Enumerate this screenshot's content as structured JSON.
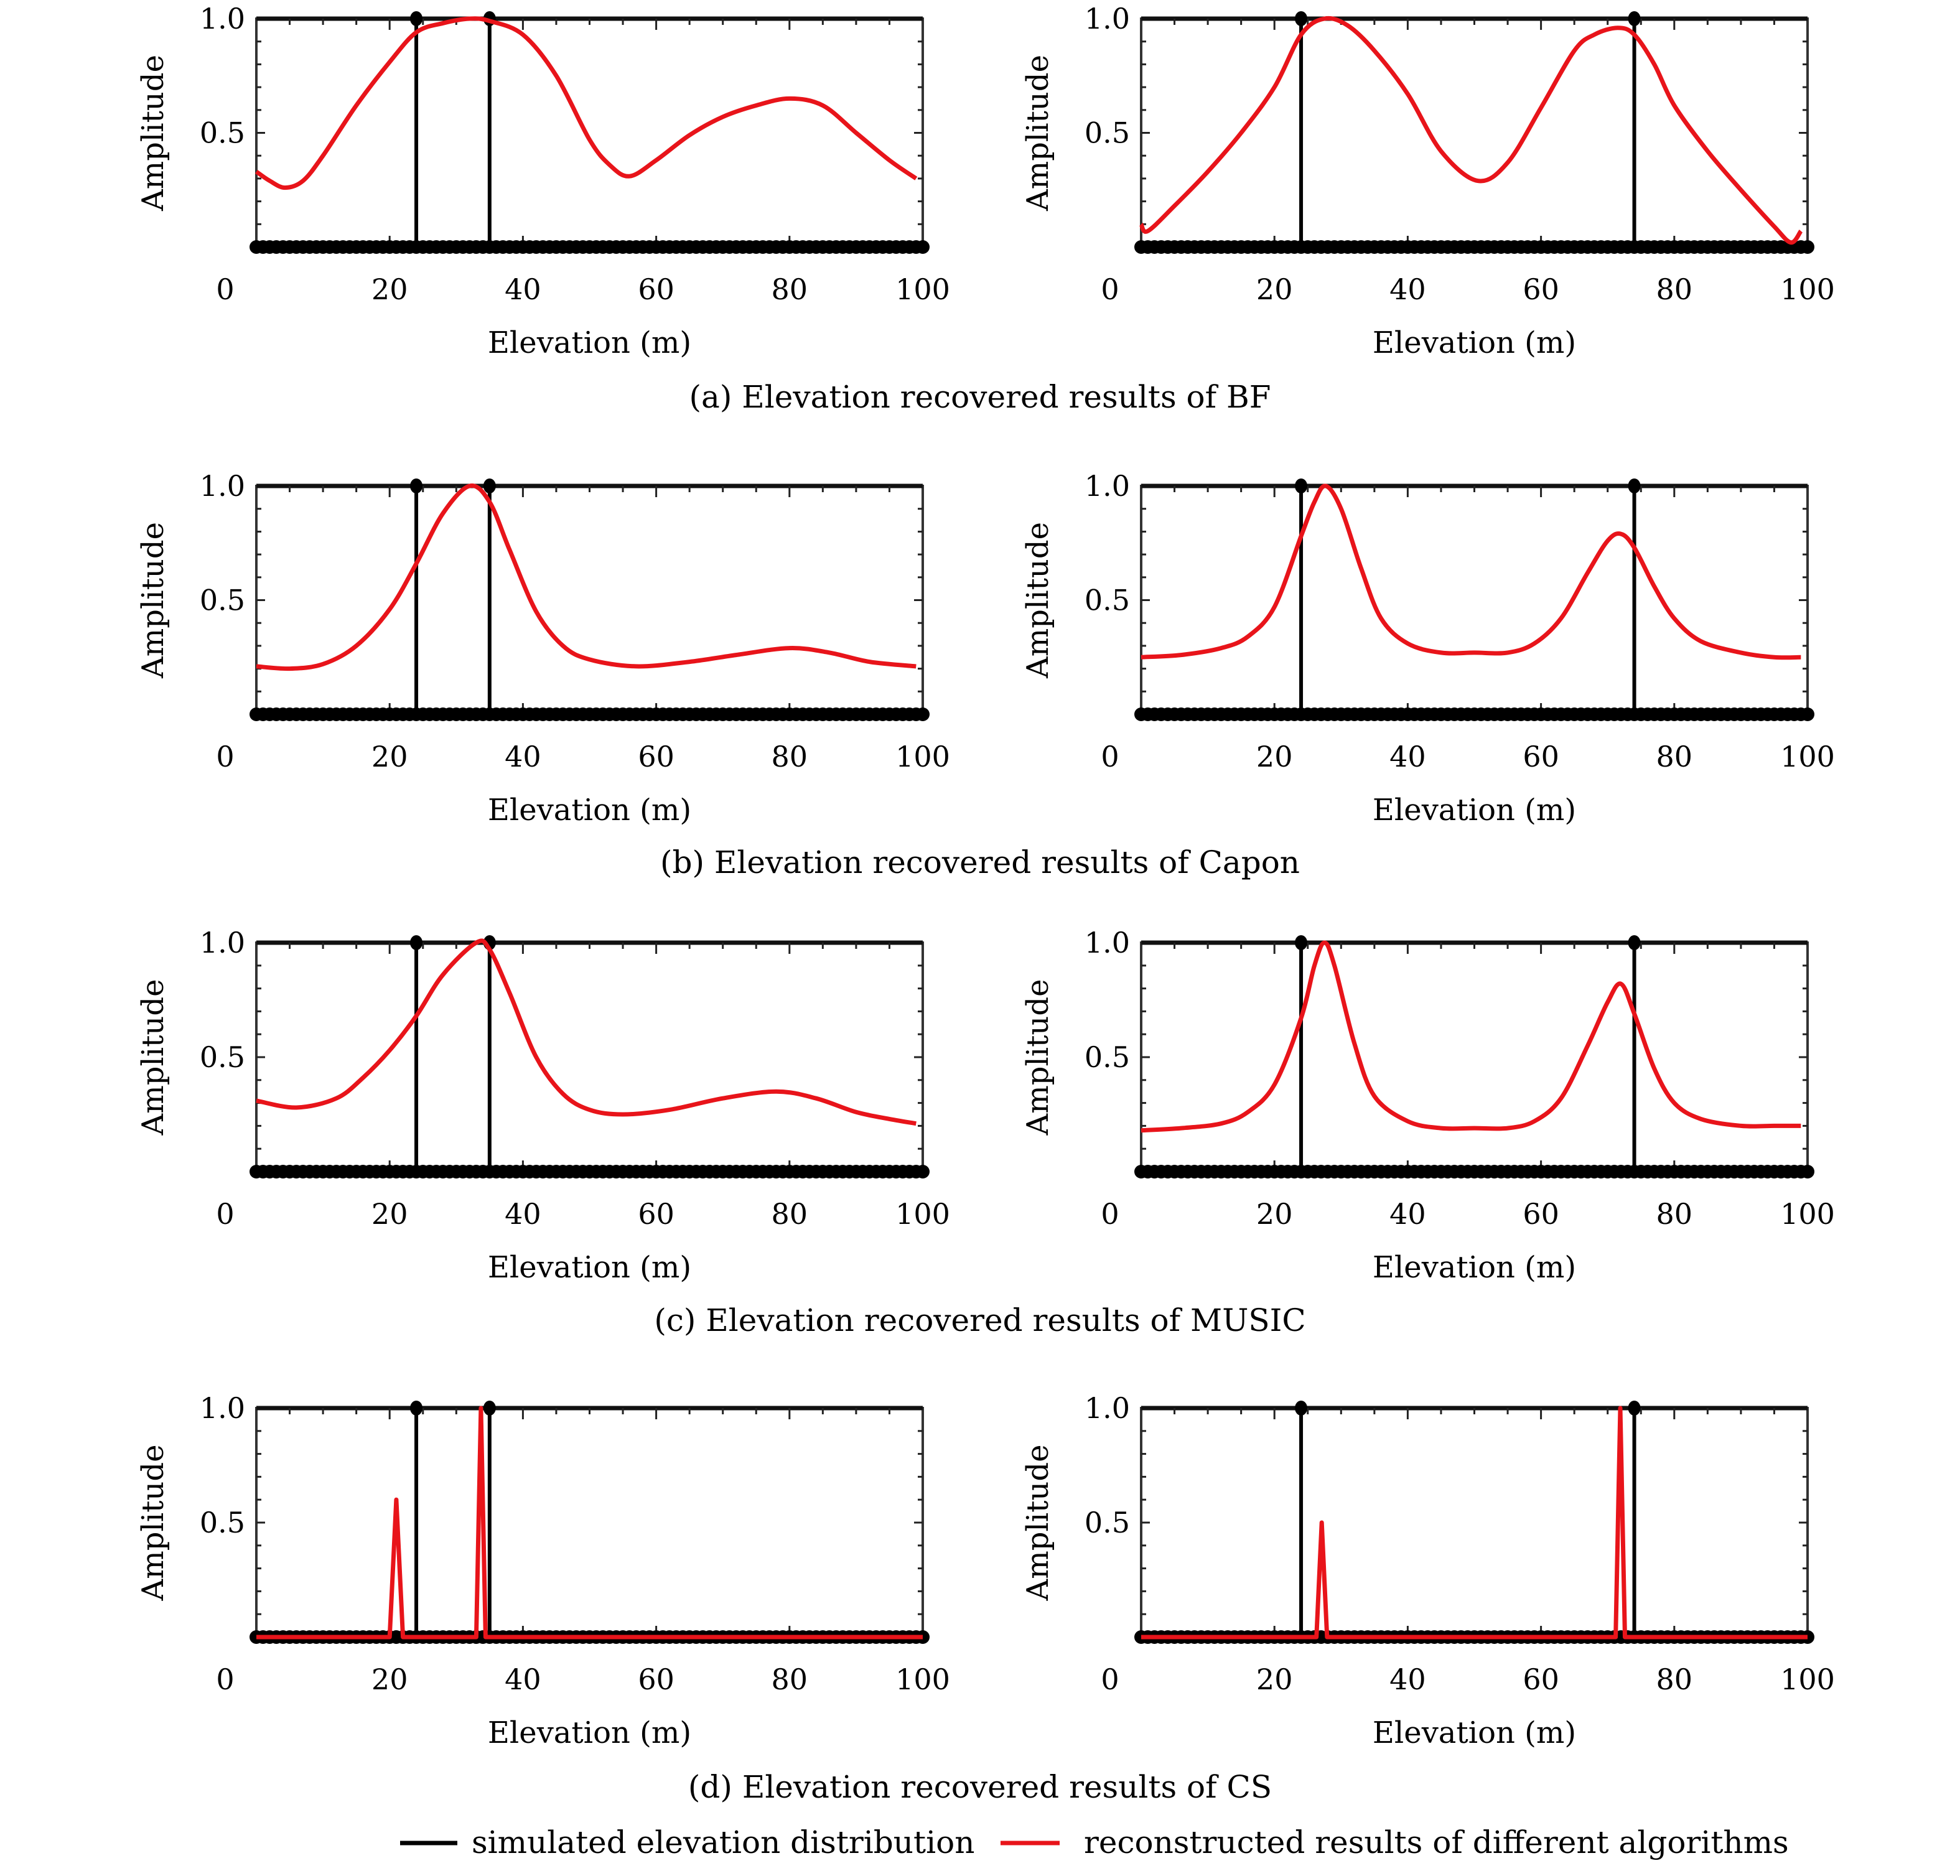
{
  "figure": {
    "legend": [
      {
        "label": "simulated elevation distribution",
        "color": "#000000"
      },
      {
        "label": "reconstructed results of different algorithms",
        "color": "#e8141a"
      }
    ]
  },
  "chart_data": [
    {
      "type": "line",
      "group": "a",
      "panel": "left",
      "caption": "(a) Elevation recovered results of BF",
      "xlabel": "Elevation (m)",
      "ylabel": "Amplitude",
      "xlim": [
        0,
        100
      ],
      "ylim": [
        0,
        1
      ],
      "xticks": [
        0,
        20,
        40,
        60,
        80,
        100
      ],
      "yticks": [
        0.5,
        1.0
      ],
      "ytick_labels": [
        "0.5",
        "1.0"
      ],
      "simulated": {
        "x": [
          24,
          35
        ],
        "y": [
          1,
          1
        ]
      },
      "reconstructed": {
        "x": [
          0,
          2,
          4.3,
          7,
          10,
          15,
          20,
          24,
          28,
          32,
          35,
          40,
          45,
          50,
          53,
          56,
          60,
          65,
          70,
          75,
          80,
          85,
          90,
          95,
          99
        ],
        "y": [
          0.33,
          0.29,
          0.26,
          0.29,
          0.4,
          0.62,
          0.81,
          0.94,
          0.98,
          1.0,
          0.99,
          0.93,
          0.75,
          0.47,
          0.36,
          0.31,
          0.38,
          0.49,
          0.57,
          0.62,
          0.65,
          0.62,
          0.5,
          0.38,
          0.3
        ]
      }
    },
    {
      "type": "line",
      "group": "a",
      "panel": "right",
      "caption": "(a) Elevation recovered results of BF",
      "xlabel": "Elevation (m)",
      "ylabel": "Amplitude",
      "xlim": [
        0,
        100
      ],
      "ylim": [
        0,
        1
      ],
      "xticks": [
        0,
        20,
        40,
        60,
        80,
        100
      ],
      "yticks": [
        0.5,
        1.0
      ],
      "ytick_labels": [
        "0.5",
        "1.0"
      ],
      "simulated": {
        "x": [
          24,
          74
        ],
        "y": [
          1,
          1
        ]
      },
      "reconstructed": {
        "x": [
          0,
          1,
          5,
          10,
          15,
          20,
          24,
          27.5,
          31,
          35,
          40,
          45,
          50.5,
          55,
          60,
          65,
          68,
          71.5,
          74,
          77,
          80,
          85,
          90,
          95,
          97.5,
          99
        ],
        "y": [
          0.1,
          0.07,
          0.18,
          0.33,
          0.5,
          0.7,
          0.93,
          1.0,
          0.97,
          0.86,
          0.67,
          0.42,
          0.29,
          0.37,
          0.61,
          0.86,
          0.93,
          0.96,
          0.93,
          0.8,
          0.62,
          0.42,
          0.25,
          0.09,
          0.02,
          0.07
        ]
      }
    },
    {
      "type": "line",
      "group": "b",
      "panel": "left",
      "caption": "(b) Elevation recovered results of Capon",
      "xlabel": "Elevation (m)",
      "ylabel": "Amplitude",
      "xlim": [
        0,
        100
      ],
      "ylim": [
        0,
        1
      ],
      "xticks": [
        0,
        20,
        40,
        60,
        80,
        100
      ],
      "yticks": [
        0.5,
        1.0
      ],
      "ytick_labels": [
        "0.5",
        "1.0"
      ],
      "simulated": {
        "x": [
          24,
          35
        ],
        "y": [
          1,
          1
        ]
      },
      "reconstructed": {
        "x": [
          0,
          5,
          10,
          15,
          20,
          24,
          28,
          32,
          35,
          38,
          42,
          46,
          50,
          57,
          65,
          72,
          80,
          86,
          92,
          99
        ],
        "y": [
          0.21,
          0.2,
          0.22,
          0.3,
          0.46,
          0.66,
          0.88,
          1.0,
          0.93,
          0.72,
          0.45,
          0.3,
          0.24,
          0.21,
          0.23,
          0.26,
          0.29,
          0.27,
          0.23,
          0.21
        ]
      }
    },
    {
      "type": "line",
      "group": "b",
      "panel": "right",
      "caption": "(b) Elevation recovered results of Capon",
      "xlabel": "Elevation (m)",
      "ylabel": "Amplitude",
      "xlim": [
        0,
        100
      ],
      "ylim": [
        0,
        1
      ],
      "xticks": [
        0,
        20,
        40,
        60,
        80,
        100
      ],
      "yticks": [
        0.5,
        1.0
      ],
      "ytick_labels": [
        "0.5",
        "1.0"
      ],
      "simulated": {
        "x": [
          24,
          74
        ],
        "y": [
          1,
          1
        ]
      },
      "reconstructed": {
        "x": [
          0,
          6,
          12,
          16,
          20,
          24,
          26,
          27.7,
          30,
          33,
          36,
          40,
          45,
          50,
          55,
          59,
          63,
          67,
          70,
          72,
          74,
          77,
          80,
          84,
          90,
          95,
          99
        ],
        "y": [
          0.25,
          0.26,
          0.29,
          0.34,
          0.47,
          0.78,
          0.93,
          1.0,
          0.9,
          0.64,
          0.42,
          0.31,
          0.27,
          0.27,
          0.27,
          0.31,
          0.42,
          0.62,
          0.76,
          0.79,
          0.73,
          0.56,
          0.42,
          0.32,
          0.27,
          0.25,
          0.25
        ]
      }
    },
    {
      "type": "line",
      "group": "c",
      "panel": "left",
      "caption": "(c) Elevation recovered results of MUSIC",
      "xlabel": "Elevation (m)",
      "ylabel": "Amplitude",
      "xlim": [
        0,
        100
      ],
      "ylim": [
        0,
        1
      ],
      "xticks": [
        0,
        20,
        40,
        60,
        80,
        100
      ],
      "yticks": [
        0.5,
        1.0
      ],
      "ytick_labels": [
        "0.5",
        "1.0"
      ],
      "simulated": {
        "x": [
          24,
          35
        ],
        "y": [
          1,
          1
        ]
      },
      "reconstructed": {
        "x": [
          0,
          6,
          12,
          16,
          20,
          24,
          28,
          33,
          35,
          38,
          42,
          46,
          50,
          55,
          62,
          70,
          78,
          84,
          90,
          95,
          99
        ],
        "y": [
          0.31,
          0.28,
          0.32,
          0.41,
          0.53,
          0.68,
          0.86,
          1.0,
          0.97,
          0.78,
          0.5,
          0.34,
          0.27,
          0.25,
          0.27,
          0.32,
          0.35,
          0.32,
          0.26,
          0.23,
          0.21
        ]
      }
    },
    {
      "type": "line",
      "group": "c",
      "panel": "right",
      "caption": "(c) Elevation recovered results of MUSIC",
      "xlabel": "Elevation (m)",
      "ylabel": "Amplitude",
      "xlim": [
        0,
        100
      ],
      "ylim": [
        0,
        1
      ],
      "xticks": [
        0,
        20,
        40,
        60,
        80,
        100
      ],
      "yticks": [
        0.5,
        1.0
      ],
      "ytick_labels": [
        "0.5",
        "1.0"
      ],
      "simulated": {
        "x": [
          24,
          74
        ],
        "y": [
          1,
          1
        ]
      },
      "reconstructed": {
        "x": [
          0,
          6,
          12,
          16,
          20,
          24,
          26,
          27.5,
          29,
          32,
          35,
          40,
          45,
          50,
          55,
          59,
          63,
          67,
          70,
          72,
          74,
          77,
          80,
          84,
          90,
          95,
          99
        ],
        "y": [
          0.18,
          0.19,
          0.21,
          0.26,
          0.38,
          0.67,
          0.9,
          1.0,
          0.9,
          0.56,
          0.33,
          0.22,
          0.19,
          0.19,
          0.19,
          0.22,
          0.32,
          0.55,
          0.74,
          0.82,
          0.69,
          0.45,
          0.3,
          0.23,
          0.2,
          0.2,
          0.2
        ]
      }
    },
    {
      "type": "line",
      "group": "d",
      "panel": "left",
      "caption": "(d) Elevation recovered results of CS",
      "xlabel": "Elevation (m)",
      "ylabel": "Amplitude",
      "xlim": [
        0,
        100
      ],
      "ylim": [
        0,
        1
      ],
      "xticks": [
        0,
        20,
        40,
        60,
        80,
        100
      ],
      "yticks": [
        0.5,
        1.0
      ],
      "ytick_labels": [
        "0.5",
        "1.0"
      ],
      "simulated": {
        "x": [
          24,
          35
        ],
        "y": [
          1,
          1
        ]
      },
      "reconstructed": {
        "x": [
          0,
          20,
          21,
          22,
          33,
          33.7,
          34.4,
          100
        ],
        "y": [
          0,
          0,
          0.6,
          0,
          0,
          1.0,
          0,
          0
        ]
      }
    },
    {
      "type": "line",
      "group": "d",
      "panel": "right",
      "caption": "(d) Elevation recovered results of CS",
      "xlabel": "Elevation (m)",
      "ylabel": "Amplitude",
      "xlim": [
        0,
        100
      ],
      "ylim": [
        0,
        1
      ],
      "xticks": [
        0,
        20,
        40,
        60,
        80,
        100
      ],
      "yticks": [
        0.5,
        1.0
      ],
      "ytick_labels": [
        "0.5",
        "1.0"
      ],
      "simulated": {
        "x": [
          24,
          74
        ],
        "y": [
          1,
          1
        ]
      },
      "reconstructed": {
        "x": [
          0,
          26.3,
          27.1,
          27.9,
          71.2,
          71.9,
          72.6,
          100
        ],
        "y": [
          0,
          0,
          0.5,
          0,
          0,
          1.0,
          0,
          0
        ]
      }
    }
  ]
}
